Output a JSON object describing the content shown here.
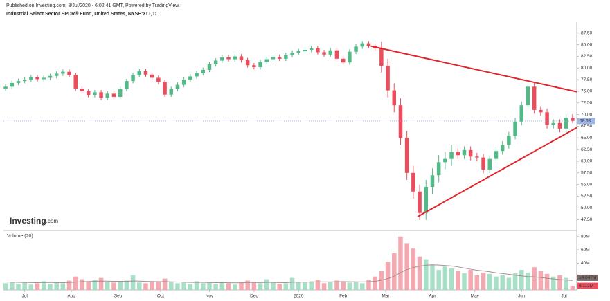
{
  "chart_data": {
    "type": "candlestick",
    "source": "Published on Investing.com, 8/Jul/2020 - 6:02:41 GMT, Powered by TradingView.",
    "title": "Industrial Select Sector SPDR® Fund, United States, NYSE:XLI, D",
    "logo": "Investing",
    "logo_suffix": ".com",
    "volume_label": "Volume (20)",
    "up_color": "#53b987",
    "down_color": "#eb4d5c",
    "volume_up_color": "#a8dfc7",
    "volume_down_color": "#f4a9b1",
    "volume_ma_color": "#a89090",
    "trendline_color": "#e0262c",
    "last_price_color": "#9fb6e8",
    "x": [
      -9,
      -6,
      -3,
      0,
      3,
      6,
      9,
      12,
      15,
      18,
      21,
      24,
      27,
      30,
      33,
      36,
      39,
      42,
      45,
      48,
      51,
      54,
      57,
      60,
      63,
      66,
      69,
      72,
      75,
      78,
      81,
      84,
      87,
      90,
      93,
      96,
      99,
      102,
      105,
      108,
      111,
      114,
      117,
      120,
      123,
      126,
      129,
      132,
      135,
      138,
      141,
      144,
      147,
      150,
      153,
      156,
      159,
      162,
      165,
      168,
      171,
      174,
      177,
      180,
      183,
      186,
      189,
      192,
      195,
      198,
      201,
      204,
      207,
      210,
      213,
      216,
      219,
      222,
      225,
      228,
      231,
      234,
      237,
      240,
      243,
      246,
      249,
      252,
      255,
      258
    ],
    "open": [
      75.6,
      76.0,
      76.8,
      77.2,
      77.5,
      78.0,
      77.6,
      77.9,
      78.3,
      78.8,
      79.2,
      78.5,
      75.6,
      75.0,
      74.2,
      74.8,
      73.6,
      74.5,
      73.8,
      75.5,
      77.2,
      78.5,
      79.3,
      78.6,
      77.9,
      77.0,
      74.3,
      75.5,
      76.4,
      77.5,
      78.2,
      78.9,
      79.6,
      80.8,
      81.6,
      82.3,
      81.9,
      82.5,
      81.7,
      80.6,
      80.2,
      81.3,
      81.9,
      82.4,
      82.0,
      82.8,
      83.3,
      83.6,
      83.9,
      84.2,
      83.4,
      82.9,
      83.8,
      82.0,
      81.2,
      83.5,
      84.6,
      85.3,
      84.8,
      84.2,
      80.5,
      75.2,
      72.0,
      65.0,
      57.5,
      53.5,
      48.9,
      54.5,
      57.0,
      59.8,
      60.5,
      62.0,
      61.3,
      62.4,
      61.0,
      60.8,
      58.2,
      60.5,
      62.2,
      63.5,
      65.5,
      68.5,
      72.0,
      76.0,
      71.0,
      70.5,
      67.8,
      68.2,
      67.0,
      69.3
    ],
    "high": [
      76.5,
      77.3,
      77.7,
      78.0,
      78.5,
      78.5,
      78.4,
      78.8,
      79.3,
      79.7,
      79.7,
      79.0,
      76.1,
      75.5,
      75.3,
      75.3,
      75.0,
      75.0,
      76.0,
      77.7,
      79.0,
      79.8,
      79.8,
      79.1,
      78.4,
      77.5,
      76.0,
      76.9,
      78.0,
      78.7,
      79.4,
      80.1,
      81.3,
      82.1,
      82.8,
      82.8,
      83.0,
      83.0,
      82.2,
      81.1,
      81.8,
      82.4,
      82.9,
      82.9,
      83.3,
      83.8,
      84.1,
      84.4,
      84.7,
      84.7,
      83.9,
      84.3,
      84.3,
      82.5,
      84.0,
      85.1,
      85.8,
      85.8,
      85.3,
      85.7,
      82.0,
      76.7,
      73.5,
      66.5,
      59.0,
      55.0,
      56.0,
      58.5,
      61.3,
      62.0,
      63.5,
      62.8,
      63.2,
      63.2,
      61.8,
      61.6,
      61.3,
      63.0,
      64.3,
      66.3,
      69.3,
      72.8,
      76.8,
      76.8,
      71.8,
      71.3,
      69.0,
      69.0,
      70.1,
      70.1
    ],
    "low": [
      75.1,
      75.5,
      76.3,
      76.7,
      77.0,
      77.1,
      77.1,
      77.4,
      77.8,
      78.3,
      78.0,
      75.1,
      74.5,
      73.7,
      73.7,
      73.1,
      73.1,
      73.3,
      73.3,
      75.0,
      76.7,
      78.0,
      78.1,
      77.4,
      76.5,
      73.8,
      73.8,
      75.0,
      75.9,
      77.0,
      77.7,
      78.4,
      79.1,
      80.3,
      81.1,
      81.4,
      81.4,
      81.2,
      80.1,
      79.7,
      79.7,
      80.8,
      81.4,
      81.5,
      81.5,
      82.3,
      82.8,
      83.1,
      83.4,
      82.9,
      82.4,
      82.4,
      81.5,
      80.7,
      80.7,
      83.0,
      84.1,
      84.3,
      83.7,
      79.0,
      73.7,
      70.5,
      63.5,
      56.0,
      52.0,
      47.4,
      47.4,
      53.0,
      55.5,
      58.3,
      59.0,
      60.5,
      60.5,
      60.2,
      60.0,
      57.4,
      57.4,
      59.7,
      61.4,
      62.7,
      64.7,
      67.7,
      71.2,
      70.2,
      69.7,
      67.0,
      67.0,
      66.2,
      66.2,
      68.2
    ],
    "close": [
      76.0,
      76.8,
      77.2,
      77.5,
      78.0,
      77.6,
      77.9,
      78.3,
      78.8,
      79.2,
      78.5,
      75.6,
      75.0,
      74.2,
      74.8,
      73.6,
      74.5,
      73.8,
      75.5,
      77.2,
      78.5,
      79.3,
      78.6,
      77.9,
      77.0,
      74.3,
      75.5,
      76.4,
      77.5,
      78.2,
      78.9,
      79.6,
      80.8,
      81.6,
      82.3,
      81.9,
      82.5,
      81.7,
      80.6,
      80.2,
      81.3,
      81.9,
      82.4,
      82.0,
      82.8,
      83.3,
      83.6,
      83.9,
      84.2,
      83.4,
      82.9,
      83.8,
      82.0,
      81.2,
      83.5,
      84.6,
      85.3,
      84.8,
      84.2,
      80.5,
      75.2,
      72.0,
      65.0,
      57.5,
      53.5,
      48.9,
      54.5,
      57.0,
      59.8,
      60.5,
      62.0,
      61.3,
      62.4,
      61.0,
      60.8,
      58.2,
      60.5,
      62.2,
      63.5,
      65.5,
      68.5,
      72.0,
      76.0,
      71.0,
      70.5,
      67.8,
      68.2,
      67.0,
      69.3,
      68.63
    ],
    "volume": [
      10,
      12,
      9,
      11,
      8,
      10,
      13,
      9,
      11,
      10,
      14,
      20,
      16,
      13,
      15,
      18,
      12,
      11,
      12,
      14,
      22,
      11,
      10,
      13,
      12,
      17,
      12,
      10,
      11,
      9,
      13,
      10,
      11,
      9,
      12,
      10,
      8,
      11,
      14,
      12,
      10,
      16,
      11,
      9,
      10,
      18,
      12,
      11,
      13,
      15,
      10,
      12,
      14,
      13,
      11,
      12,
      10,
      15,
      20,
      28,
      42,
      55,
      80,
      70,
      62,
      50,
      45,
      38,
      30,
      35,
      32,
      28,
      25,
      30,
      22,
      26,
      24,
      20,
      22,
      18,
      25,
      30,
      26,
      34,
      28,
      24,
      20,
      22,
      18,
      6.112
    ],
    "volume_ma": [
      11.8,
      11.6,
      11.4,
      11.2,
      11.0,
      10.9,
      11.0,
      11.1,
      11.0,
      10.9,
      11.1,
      11.8,
      12.4,
      12.6,
      12.9,
      13.3,
      13.2,
      13.0,
      12.9,
      12.8,
      13.4,
      13.2,
      12.8,
      12.6,
      12.4,
      12.5,
      12.2,
      11.9,
      11.6,
      11.3,
      11.4,
      11.2,
      11.1,
      10.9,
      11.0,
      10.8,
      10.6,
      10.7,
      11.0,
      11.1,
      11.0,
      11.3,
      11.2,
      11.0,
      10.9,
      11.5,
      11.7,
      11.6,
      11.8,
      12.2,
      12.0,
      12.0,
      12.2,
      12.4,
      12.3,
      12.2,
      12.0,
      12.3,
      13.0,
      14.5,
      17.0,
      20.5,
      26.0,
      30.5,
      33.5,
      35.5,
      37.0,
      37.6,
      37.2,
      36.5,
      35.8,
      34.5,
      32.8,
      31.0,
      29.5,
      28.5,
      27.2,
      25.6,
      24.5,
      23.4,
      22.0,
      21.0,
      20.0,
      19.5,
      18.5,
      17.5,
      16.5,
      15.6,
      14.8,
      14.047
    ],
    "xlim": [
      -10,
      260
    ],
    "xticks": [
      {
        "value": 0,
        "label": "Jul"
      },
      {
        "value": 22,
        "label": "Aug"
      },
      {
        "value": 44,
        "label": "Sep"
      },
      {
        "value": 64,
        "label": "Oct"
      },
      {
        "value": 87,
        "label": "Nov"
      },
      {
        "value": 108,
        "label": "Dec"
      },
      {
        "value": 129,
        "label": "2020"
      },
      {
        "value": 150,
        "label": "Feb"
      },
      {
        "value": 170,
        "label": "Mar"
      },
      {
        "value": 192,
        "label": "Apr"
      },
      {
        "value": 212,
        "label": "May"
      },
      {
        "value": 234,
        "label": "Jun"
      },
      {
        "value": 254,
        "label": "Jul"
      }
    ],
    "ylim": [
      45.6,
      89.4
    ],
    "yticks": [
      {
        "value": 87.5,
        "label": "87.50"
      },
      {
        "value": 85,
        "label": "85.00"
      },
      {
        "value": 82.5,
        "label": "82.50"
      },
      {
        "value": 80,
        "label": "80.00"
      },
      {
        "value": 77.5,
        "label": "77.50"
      },
      {
        "value": 75,
        "label": "75.00"
      },
      {
        "value": 72.5,
        "label": "72.50"
      },
      {
        "value": 70,
        "label": "70.00"
      },
      {
        "value": 67.5,
        "label": "67.50"
      },
      {
        "value": 65,
        "label": "65.00"
      },
      {
        "value": 62.5,
        "label": "62.50"
      },
      {
        "value": 60,
        "label": "60.00"
      },
      {
        "value": 57.5,
        "label": "57.50"
      },
      {
        "value": 55,
        "label": "55.00"
      },
      {
        "value": 52.5,
        "label": "52.50"
      },
      {
        "value": 50,
        "label": "50.00"
      },
      {
        "value": 47.5,
        "label": "47.50"
      }
    ],
    "volume_ylim": [
      0,
      87
    ],
    "volume_yticks": [
      {
        "value": 80,
        "label": "80M"
      },
      {
        "value": 60,
        "label": "60M"
      },
      {
        "value": 40,
        "label": "40M"
      }
    ],
    "last_price": {
      "value": 68.63,
      "label": "68.63"
    },
    "last_volume_ma": {
      "value": 14.047,
      "label": "14.047M"
    },
    "last_volume": {
      "value": 6.112,
      "label": "6.112M"
    },
    "trendlines": [
      {
        "x": [
          163,
          260
        ],
        "y": [
          84.7,
          74.9
        ]
      },
      {
        "x": [
          185,
          260
        ],
        "y": [
          48.1,
          67.2
        ]
      }
    ]
  }
}
